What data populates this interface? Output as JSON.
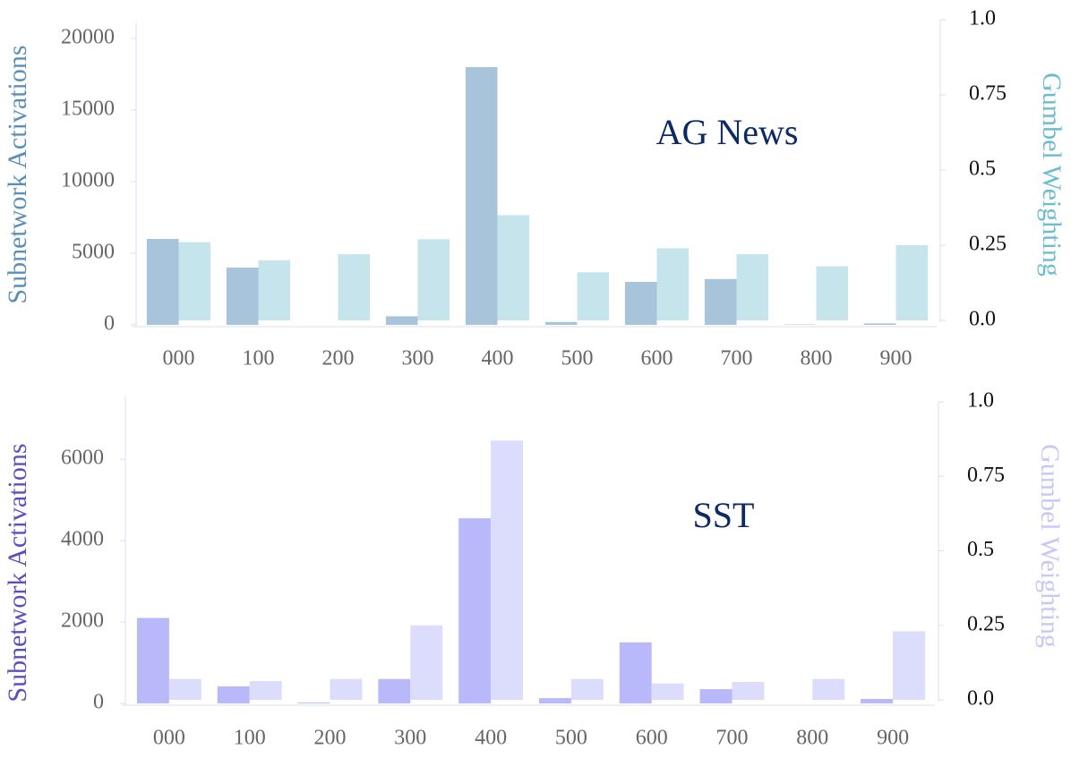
{
  "chart_data": [
    {
      "type": "bar",
      "title": "AG News",
      "categories": [
        "000",
        "100",
        "200",
        "300",
        "400",
        "500",
        "600",
        "700",
        "800",
        "900"
      ],
      "ylabel": "Subnetwork Activations",
      "y2label": "Gumbel Weighting",
      "ylabel_color": "#5b8fb8",
      "y2label_color": "#6bbdd0",
      "title_color": "#0d2a66",
      "series": [
        {
          "color": "#a8c4db",
          "values": [
            6000,
            4000,
            0,
            600,
            18000,
            200,
            3000,
            3200,
            30,
            100
          ]
        },
        {
          "color": "#c5e4ec",
          "axis": "y2",
          "values": [
            0.26,
            0.2,
            0.22,
            0.27,
            0.35,
            0.16,
            0.24,
            0.22,
            0.18,
            0.25
          ]
        }
      ],
      "ylim": [
        0,
        21000
      ],
      "yticks": [
        0,
        5000,
        10000,
        15000,
        20000
      ],
      "y2lim": [
        0,
        1
      ],
      "y2ticks": [
        {
          "value": 0,
          "label": "0.0"
        },
        0.25,
        0.5,
        0.75,
        {
          "value": 1,
          "label": "1.0"
        }
      ],
      "grid": false
    },
    {
      "type": "bar",
      "title": "SST",
      "categories": [
        "000",
        "100",
        "200",
        "300",
        "400",
        "500",
        "600",
        "700",
        "800",
        "900"
      ],
      "ylabel": "Subnetwork Activations",
      "y2label": "Gumbel Weighting",
      "ylabel_color": "#5a4fc0",
      "y2label_color": "#c8c8f8",
      "title_color": "#0d2a66",
      "series": [
        {
          "color": "#b8b8fb",
          "values": [
            2100,
            420,
            20,
            600,
            4550,
            130,
            1500,
            350,
            0,
            110
          ]
        },
        {
          "color": "#dcdcfd",
          "axis": "y2",
          "values": [
            0.07,
            0.063,
            0.07,
            0.25,
            0.87,
            0.07,
            0.055,
            0.06,
            0.07,
            0.23
          ]
        }
      ],
      "ylim": [
        0,
        7500
      ],
      "yticks": [
        0,
        2000,
        4000,
        6000
      ],
      "y2lim": [
        0,
        1
      ],
      "y2ticks": [
        {
          "value": 0,
          "label": "0.0"
        },
        0.25,
        0.5,
        0.75,
        {
          "value": 1,
          "label": "1.0"
        }
      ],
      "grid": false
    }
  ]
}
